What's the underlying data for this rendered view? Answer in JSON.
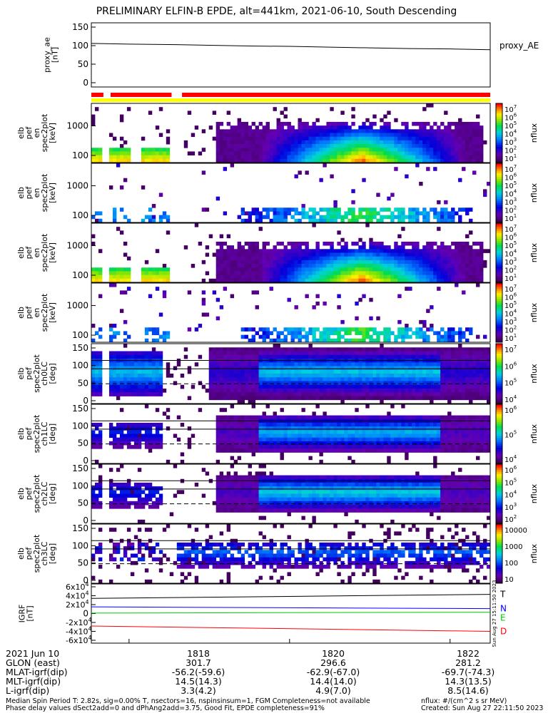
{
  "title": "PRELIMINARY ELFIN-B EPDE, alt=441km, 2021-06-10, South Descending",
  "colors": {
    "trace": "#000000",
    "spin_bar_red": "#ff0000",
    "spin_bar_yellow": "#ffff00",
    "igrf_T": "#000000",
    "igrf_N": "#0000ff",
    "igrf_E": "#00cc00",
    "igrf_D": "#ff0000"
  },
  "chart_data": [
    {
      "type": "line",
      "panel": "proxy_ae",
      "ylabel": "proxy_ae\n[nT]",
      "yticks": [
        "150",
        "100",
        "50",
        "0"
      ],
      "ylim": [
        0,
        150
      ],
      "legend": "proxy_AE",
      "x_minutes": [
        17.53,
        18.0,
        18.5,
        19.0,
        19.5,
        20.0,
        20.5,
        21.0,
        21.5,
        22.0,
        22.5
      ],
      "values": [
        106,
        104,
        103,
        101,
        99,
        98,
        96,
        94,
        92,
        91,
        89
      ]
    },
    {
      "type": "heatmap",
      "panel": "spec2plot en (omni)",
      "ylabel": "elb\npef\nen\nspec2plot\n[keV]",
      "yticks": [
        "1000",
        "100"
      ],
      "colorbar": {
        "label": "nflux",
        "ticks": [
          "10^7",
          "10^6",
          "10^5",
          "10^4",
          "10^3",
          "10^2",
          "10^1"
        ]
      }
    },
    {
      "type": "heatmap",
      "panel": "spec2plot en (anti)",
      "ylabel": "elb\npef\nen\nspec2plot\n[keV]",
      "yticks": [
        "1000",
        "100"
      ],
      "colorbar": {
        "label": "nflux",
        "ticks": [
          "10^7",
          "10^6",
          "10^5",
          "10^4",
          "10^3",
          "10^2",
          "10^1"
        ]
      }
    },
    {
      "type": "heatmap",
      "panel": "spec2plot en (perp)",
      "ylabel": "elb\npef\nen\nspec2plot\n[keV]",
      "yticks": [
        "1000",
        "100"
      ],
      "colorbar": {
        "label": "nflux",
        "ticks": [
          "10^7",
          "10^6",
          "10^5",
          "10^4",
          "10^3",
          "10^2",
          "10^1"
        ]
      }
    },
    {
      "type": "heatmap",
      "panel": "spec2plot en (para)",
      "ylabel": "elb\npef\nen\nspec2plot\n[keV]",
      "yticks": [
        "1000",
        "100"
      ],
      "colorbar": {
        "label": "nflux",
        "ticks": [
          "10^7",
          "10^6",
          "10^5",
          "10^4",
          "10^3",
          "10^2",
          "10^1"
        ]
      }
    },
    {
      "type": "heatmap",
      "panel": "ch0LC",
      "ylabel": "elb\npef\nspec2plot\nch0LC\n[deg]",
      "yticks": [
        "150",
        "100",
        "50",
        "0"
      ],
      "colorbar": {
        "label": "nflux",
        "ticks": [
          "10^7",
          "10^6",
          "10^5",
          "10^4"
        ]
      }
    },
    {
      "type": "heatmap",
      "panel": "ch1LC",
      "ylabel": "elb\npef\nspec2plot\nch1LC\n[deg]",
      "yticks": [
        "150",
        "100",
        "50",
        "0"
      ],
      "colorbar": {
        "label": "nflux",
        "ticks": [
          "10^6",
          "10^5",
          "10^4"
        ]
      }
    },
    {
      "type": "heatmap",
      "panel": "ch2LC",
      "ylabel": "elb\npef\nspec2plot\nch2LC\n[deg]",
      "yticks": [
        "150",
        "100",
        "50",
        "0"
      ],
      "colorbar": {
        "label": "nflux",
        "ticks": [
          "10^6",
          "10^5",
          "10^4",
          "10^3",
          "10^2"
        ]
      }
    },
    {
      "type": "heatmap",
      "panel": "ch3LC",
      "ylabel": "elb\npef\nspec2plot\nch3LC\n[deg]",
      "yticks": [
        "150",
        "100",
        "50",
        "0"
      ],
      "colorbar": {
        "label": "nflux",
        "ticks": [
          "10000",
          "1000",
          "100",
          "10"
        ]
      }
    },
    {
      "type": "line",
      "panel": "IGRF",
      "ylabel": "IGRF\n[nT]",
      "yticks": [
        "6x10^4",
        "4x10^4",
        "2x10^4",
        "0",
        "-2x10^4",
        "-4x10^4",
        "-6x10^4"
      ],
      "ylim": [
        -60000,
        60000
      ],
      "x_minutes": [
        17.53,
        22.5
      ],
      "series": [
        {
          "name": "T",
          "values": [
            34000,
            43000
          ]
        },
        {
          "name": "N",
          "values": [
            15000,
            11000
          ]
        },
        {
          "name": "E",
          "values": [
            1000,
            3000
          ]
        },
        {
          "name": "D",
          "values": [
            -28000,
            -40000
          ]
        }
      ],
      "stamp": "Sun Aug 27 15:11:50 2023"
    }
  ],
  "ephemeris": {
    "rows": [
      {
        "label": "2021 Jun 10",
        "values": [
          "1818",
          "1820",
          "1822"
        ]
      },
      {
        "label": "GLON (east)",
        "values": [
          "301.7",
          "296.6",
          "281.2"
        ]
      },
      {
        "label": "MLAT-igrf(dip)",
        "values": [
          "-56.2(-59.6)",
          "-62.9(-67.0)",
          "-69.7(-74.3)"
        ]
      },
      {
        "label": "MLT-igrf(dip)",
        "values": [
          "14.5(14.3)",
          "14.4(14.0)",
          "14.3(13.5)"
        ]
      },
      {
        "label": "L-igrf(dip)",
        "values": [
          "3.3(4.2)",
          "4.9(7.0)",
          "8.5(14.6)"
        ]
      }
    ]
  },
  "footer": {
    "line1": "Median Spin Period T: 2.82s, sig=0.00% T, nsectors=16, nspinsinsum=1, FGM Completeness=not available",
    "line2": "Phase delay values dSect2add=0 and dPhAng2add=3.75, Good Fit, EPDE completeness=91%",
    "right1": "nflux: #/(cm^2 s sr MeV)",
    "right2": "Created: Sun Aug 27 22:11:50 2023"
  }
}
